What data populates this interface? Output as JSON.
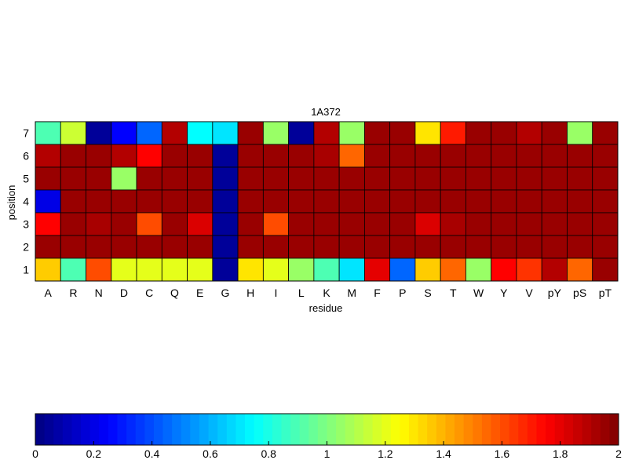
{
  "chart_data": [
    {
      "type": "heatmap",
      "title": "1A372",
      "xlabel": "residue",
      "ylabel": "position",
      "x_categories": [
        "A",
        "R",
        "N",
        "D",
        "C",
        "Q",
        "E",
        "G",
        "H",
        "I",
        "L",
        "K",
        "M",
        "F",
        "P",
        "S",
        "T",
        "W",
        "Y",
        "V",
        "pY",
        "pS",
        "pT"
      ],
      "y_categories": [
        "1",
        "2",
        "3",
        "4",
        "5",
        "6",
        "7"
      ],
      "colormap": "jet",
      "clim": [
        0,
        2
      ],
      "rows": [
        {
          "position": "7",
          "values": [
            0.9,
            1.15,
            0.05,
            0.25,
            0.45,
            1.9,
            0.75,
            0.7,
            1.95,
            1.05,
            0.05,
            1.9,
            1.05,
            1.95,
            1.95,
            1.3,
            1.7,
            1.95,
            1.95,
            1.9,
            1.95,
            1.05,
            1.95
          ]
        },
        {
          "position": "6",
          "values": [
            1.9,
            1.95,
            1.95,
            1.9,
            1.75,
            1.95,
            1.95,
            0.05,
            1.95,
            1.95,
            1.95,
            1.92,
            1.55,
            1.95,
            1.95,
            1.95,
            1.95,
            1.95,
            1.95,
            1.95,
            1.95,
            1.95,
            1.95
          ]
        },
        {
          "position": "5",
          "values": [
            1.95,
            1.95,
            1.95,
            1.05,
            1.95,
            1.95,
            1.95,
            0.05,
            1.95,
            1.95,
            1.95,
            1.95,
            1.95,
            1.95,
            1.95,
            1.95,
            1.95,
            1.95,
            1.95,
            1.95,
            1.95,
            1.95,
            1.95
          ]
        },
        {
          "position": "4",
          "values": [
            0.2,
            1.95,
            1.95,
            1.95,
            1.95,
            1.95,
            1.95,
            0.05,
            1.95,
            1.95,
            1.95,
            1.95,
            1.95,
            1.95,
            1.95,
            1.95,
            1.95,
            1.95,
            1.95,
            1.95,
            1.95,
            1.95,
            1.95
          ]
        },
        {
          "position": "3",
          "values": [
            1.75,
            1.95,
            1.92,
            1.95,
            1.6,
            1.95,
            1.82,
            0.05,
            1.95,
            1.6,
            1.95,
            1.95,
            1.95,
            1.95,
            1.95,
            1.82,
            1.92,
            1.95,
            1.95,
            1.95,
            1.95,
            1.95,
            1.95
          ]
        },
        {
          "position": "2",
          "values": [
            1.95,
            1.95,
            1.95,
            1.95,
            1.95,
            1.95,
            1.95,
            0.05,
            1.95,
            1.95,
            1.95,
            1.95,
            1.95,
            1.95,
            1.95,
            1.95,
            1.95,
            1.95,
            1.95,
            1.95,
            1.95,
            1.95,
            1.95
          ]
        },
        {
          "position": "1",
          "values": [
            1.35,
            0.9,
            1.6,
            1.2,
            1.2,
            1.2,
            1.2,
            0.05,
            1.3,
            1.2,
            1.05,
            0.9,
            0.7,
            1.8,
            0.45,
            1.35,
            1.55,
            1.05,
            1.75,
            1.65,
            1.9,
            1.55,
            1.95
          ]
        }
      ]
    },
    {
      "type": "colorbar",
      "colormap": "jet",
      "range": [
        0,
        2
      ],
      "ticks": [
        "0",
        "0.2",
        "0.4",
        "0.6",
        "0.8",
        "1",
        "1.2",
        "1.4",
        "1.6",
        "1.8",
        "2"
      ]
    }
  ]
}
